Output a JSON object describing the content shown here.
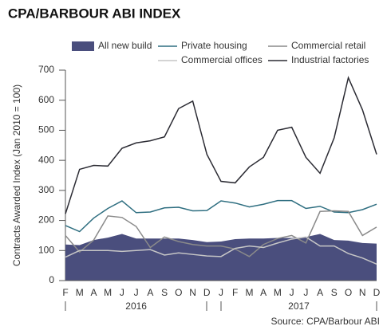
{
  "chart_data": {
    "type": "line",
    "title": "CPA/BARBOUR ABI INDEX",
    "y_label": "Contracts Awarded Index (Jan 2010 = 100)",
    "source": "Source: CPA/Barbour ABI",
    "categories": [
      "F",
      "M",
      "A",
      "M",
      "J",
      "J",
      "A",
      "S",
      "O",
      "N",
      "D",
      "J",
      "F",
      "M",
      "A",
      "M",
      "J",
      "J",
      "A",
      "S",
      "O",
      "N",
      "D"
    ],
    "x_groups": [
      "2016",
      "2017"
    ],
    "ylim": [
      0,
      700
    ],
    "yticks": [
      0,
      100,
      200,
      300,
      400,
      500,
      600,
      700
    ],
    "grid": false,
    "series": [
      {
        "name": "All new build",
        "color": "#4a4e7d",
        "style": "area",
        "values": [
          120,
          118,
          135,
          143,
          155,
          140,
          140,
          140,
          140,
          135,
          128,
          130,
          138,
          140,
          140,
          142,
          142,
          145,
          155,
          135,
          133,
          125,
          123
        ]
      },
      {
        "name": "Private housing",
        "color": "#2e6e80",
        "style": "line",
        "values": [
          183,
          163,
          208,
          240,
          265,
          226,
          228,
          242,
          244,
          232,
          233,
          265,
          258,
          245,
          254,
          266,
          266,
          240,
          247,
          228,
          226,
          236,
          254
        ]
      },
      {
        "name": "Commercial retail",
        "color": "#8a8a8a",
        "style": "line",
        "values": [
          150,
          95,
          135,
          215,
          210,
          180,
          110,
          145,
          130,
          120,
          115,
          115,
          105,
          80,
          120,
          140,
          150,
          125,
          230,
          232,
          230,
          150,
          178
        ]
      },
      {
        "name": "Commercial offices",
        "color": "#c6c6c6",
        "style": "line",
        "values": [
          78,
          100,
          100,
          100,
          97,
          100,
          103,
          85,
          92,
          87,
          82,
          80,
          107,
          115,
          110,
          125,
          138,
          145,
          115,
          115,
          90,
          75,
          55
        ]
      },
      {
        "name": "Industrial factories",
        "color": "#2b2b33",
        "style": "line",
        "values": [
          222,
          370,
          383,
          381,
          440,
          458,
          465,
          478,
          572,
          597,
          420,
          330,
          325,
          378,
          410,
          500,
          510,
          410,
          357,
          475,
          675,
          568,
          420
        ]
      }
    ]
  }
}
